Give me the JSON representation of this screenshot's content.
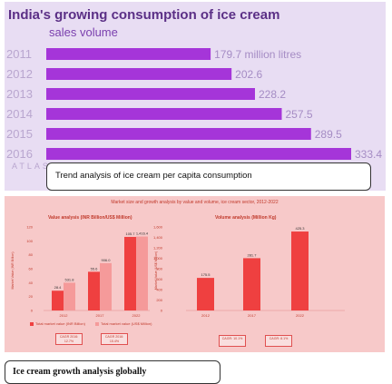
{
  "top_panel": {
    "title": "India's growing consumption of ice cream",
    "subtitle": "sales volume",
    "watermark": "ATLAS",
    "caption": "Trend analysis of ice cream per capita consumption",
    "bar_color": "#a535d9"
  },
  "bottom_panel": {
    "header": "Market size and growth analysis by value and volume, ice cream sector, 2012-2022",
    "value_title": "Value analysis (INR Billion/US$ Million)",
    "volume_title": "Volume analysis (Million Kg)",
    "legend_inr": "Total market value (INR Billion)",
    "legend_usd": "Total market value (US$ Million)",
    "cagr_value_1": "CAGR 2016: 12.7%",
    "cagr_value_2": "CAGR 2016: 15.4%",
    "cagr_volume_1": "CAGR: 10.1%",
    "cagr_volume_2": "CAGR: 8.1%",
    "caption": "Ice cream growth analysis globally",
    "colors": {
      "dark_bar": "#ef4040",
      "light_bar": "#f59a9a",
      "panel": "#f7c9c9",
      "text": "#c0392b"
    }
  },
  "chart_data": [
    {
      "type": "bar",
      "orientation": "horizontal",
      "title": "India's growing consumption of ice cream",
      "subtitle": "sales volume",
      "categories": [
        "2011",
        "2012",
        "2013",
        "2014",
        "2015",
        "2016"
      ],
      "values": [
        179.7,
        202.6,
        228.2,
        257.5,
        289.5,
        333.4
      ],
      "value_labels": [
        "179.7 million litres",
        "202.6",
        "228.2",
        "257.5",
        "289.5",
        "333.4"
      ],
      "xlim": [
        0,
        333.4
      ],
      "grid": false
    },
    {
      "type": "bar",
      "title": "Value analysis (INR Billion/US$ Million)",
      "categories": [
        "2012",
        "2017",
        "2022"
      ],
      "series": [
        {
          "name": "Total market value (INR Billion)",
          "values": [
            28.4,
            55.6,
            105.7
          ]
        },
        {
          "name": "Total market value (US$ Million)",
          "values": [
            531.8,
            906.0,
            1416.4
          ]
        }
      ],
      "value_labels": [
        [
          "28.4",
          "55.6",
          "105.7"
        ],
        [
          "531.8",
          "906.0",
          "1,416.4"
        ]
      ],
      "ylabel": "Market Value (INR Billion)",
      "y2label": "Market Value (US$ Million)",
      "ylim": [
        0,
        120
      ],
      "y2lim": [
        0,
        1600
      ],
      "yticks": [
        "0",
        "20",
        "40",
        "60",
        "80",
        "100",
        "120"
      ],
      "y2ticks": [
        "0",
        "200",
        "400",
        "600",
        "800",
        "1,000",
        "1,200",
        "1,400",
        "1,600"
      ],
      "legend": "bottom"
    },
    {
      "type": "bar",
      "title": "Volume analysis (Million Kg)",
      "categories": [
        "2012",
        "2017",
        "2022"
      ],
      "values": [
        175.5,
        281.7,
        425.3
      ],
      "ylim": [
        0,
        450
      ]
    }
  ]
}
